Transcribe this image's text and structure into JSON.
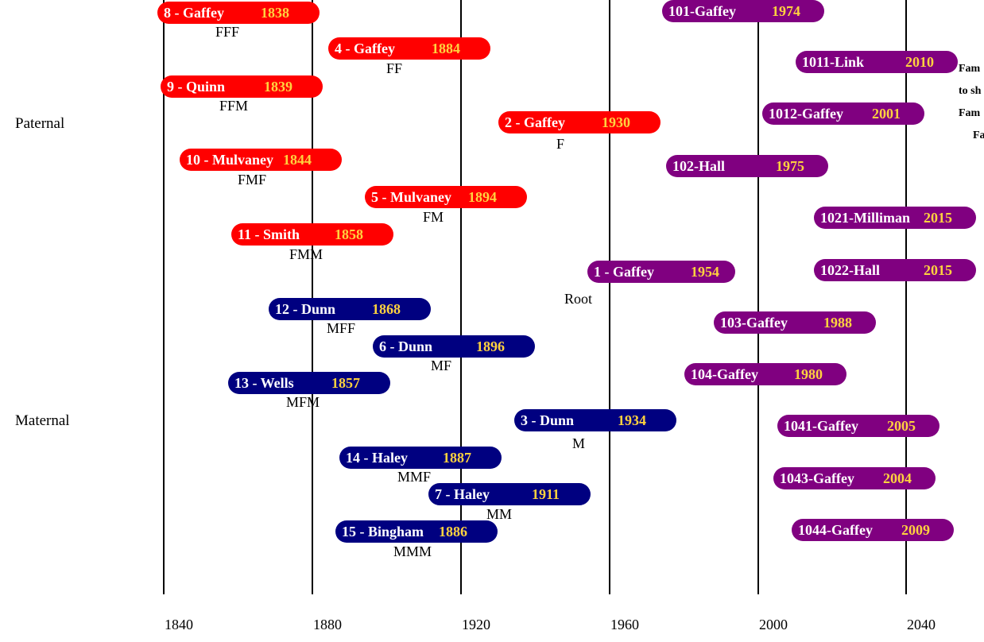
{
  "axis": {
    "years": [
      "1840",
      "1880",
      "1920",
      "1960",
      "2000",
      "2040"
    ]
  },
  "sides": {
    "paternal": "Paternal",
    "maternal": "Maternal"
  },
  "colors": {
    "paternal": "#ff0000",
    "maternal": "#000080",
    "descendant": "#800080",
    "year_text": "#ffd23f"
  },
  "note_lines": [
    "Fam",
    "to sh",
    "Fam",
    "Fa"
  ],
  "persons": [
    {
      "label": "8 - Gaffey",
      "year": "1838",
      "code": "FFF",
      "group": "paternal"
    },
    {
      "label": "4 - Gaffey",
      "year": "1884",
      "code": "FF",
      "group": "paternal"
    },
    {
      "label": "9 - Quinn",
      "year": "1839",
      "code": "FFM",
      "group": "paternal"
    },
    {
      "label": "2 - Gaffey",
      "year": "1930",
      "code": "F",
      "group": "paternal"
    },
    {
      "label": "10 - Mulvaney",
      "year": "1844",
      "code": "FMF",
      "group": "paternal"
    },
    {
      "label": "5 - Mulvaney",
      "year": "1894",
      "code": "FM",
      "group": "paternal"
    },
    {
      "label": "11 - Smith",
      "year": "1858",
      "code": "FMM",
      "group": "paternal"
    },
    {
      "label": "12 - Dunn",
      "year": "1868",
      "code": "MFF",
      "group": "maternal"
    },
    {
      "label": "6 - Dunn",
      "year": "1896",
      "code": "MF",
      "group": "maternal"
    },
    {
      "label": "13 - Wells",
      "year": "1857",
      "code": "MFM",
      "group": "maternal"
    },
    {
      "label": "3 - Dunn",
      "year": "1934",
      "code": "M",
      "group": "maternal"
    },
    {
      "label": "14 - Haley",
      "year": "1887",
      "code": "MMF",
      "group": "maternal"
    },
    {
      "label": "7 - Haley",
      "year": "1911",
      "code": "MM",
      "group": "maternal"
    },
    {
      "label": "15 - Bingham",
      "year": "1886",
      "code": "MMM",
      "group": "maternal"
    },
    {
      "label": "1 - Gaffey",
      "year": "1954",
      "code": "Root",
      "group": "descendant"
    },
    {
      "label": "101-Gaffey",
      "year": "1974",
      "code": "",
      "group": "descendant"
    },
    {
      "label": "1011-Link",
      "year": "2010",
      "code": "",
      "group": "descendant"
    },
    {
      "label": "1012-Gaffey",
      "year": "2001",
      "code": "",
      "group": "descendant"
    },
    {
      "label": "102-Hall",
      "year": "1975",
      "code": "",
      "group": "descendant"
    },
    {
      "label": "1021-Milliman",
      "year": "2015",
      "code": "",
      "group": "descendant"
    },
    {
      "label": "1022-Hall",
      "year": "2015",
      "code": "",
      "group": "descendant"
    },
    {
      "label": "103-Gaffey",
      "year": "1988",
      "code": "",
      "group": "descendant"
    },
    {
      "label": "104-Gaffey",
      "year": "1980",
      "code": "",
      "group": "descendant"
    },
    {
      "label": "1041-Gaffey",
      "year": "2005",
      "code": "",
      "group": "descendant"
    },
    {
      "label": "1043-Gaffey",
      "year": "2004",
      "code": "",
      "group": "descendant"
    },
    {
      "label": "1044-Gaffey",
      "year": "2009",
      "code": "",
      "group": "descendant"
    }
  ]
}
